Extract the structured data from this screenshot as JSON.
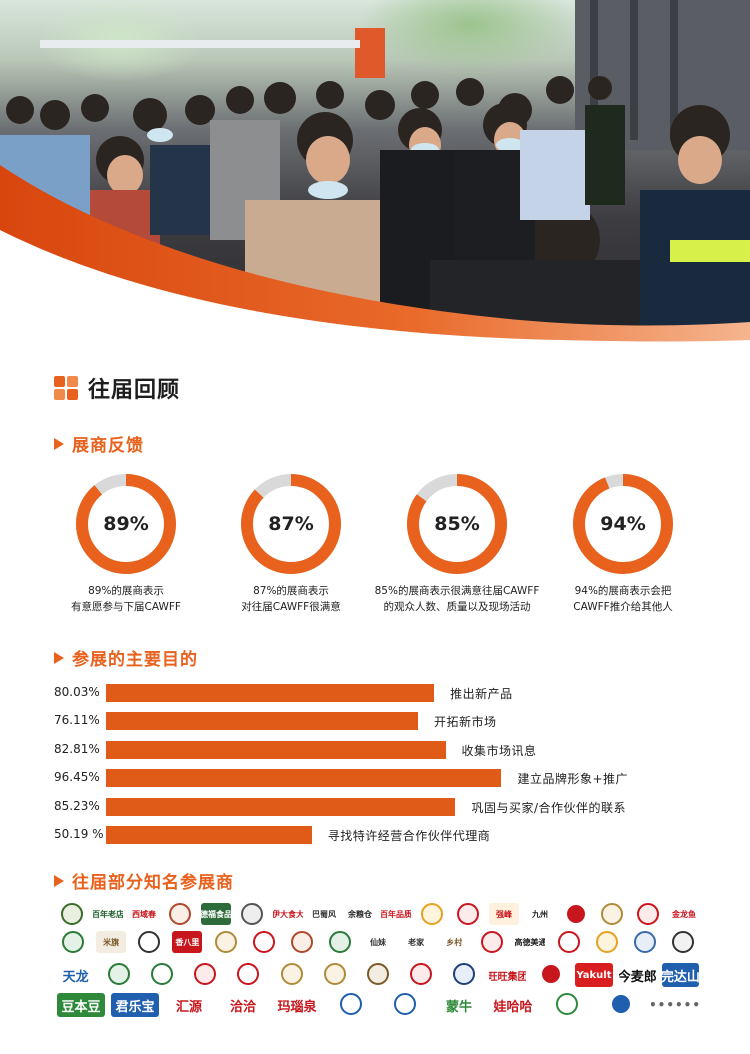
{
  "section_title": "往届回顾",
  "feedback": {
    "title": "展商反馈",
    "items": [
      {
        "value": 89,
        "label": "89%",
        "caption_line1": "89%的展商表示",
        "caption_line2": "有意愿参与下届CAWFF"
      },
      {
        "value": 87,
        "label": "87%",
        "caption_line1": "87%的展商表示",
        "caption_line2": "对往届CAWFF很满意"
      },
      {
        "value": 85,
        "label": "85%",
        "caption_line1": "85%的展商表示很满意往届CAWFF",
        "caption_line2": "的观众人数、质量以及现场活动"
      },
      {
        "value": 94,
        "label": "94%",
        "caption_line1": "94%的展商表示会把",
        "caption_line2": "CAWFF推介给其他人"
      }
    ],
    "colors": {
      "accent": "#e8621e",
      "track": "#d9d9d9"
    }
  },
  "purposes": {
    "title": "参展的主要目的",
    "chart_data": {
      "type": "bar",
      "categories": [
        "推出新产品",
        "开拓新市场",
        "收集市场讯息",
        "建立品牌形象+推广",
        "巩固与买家/合作伙伴的联系",
        "寻找特许经营合作伙伴代理商"
      ],
      "values": [
        80.03,
        76.11,
        82.81,
        96.45,
        85.23,
        50.19
      ],
      "value_labels": [
        "80.03%",
        "76.11%",
        "82.81%",
        "96.45%",
        "85.23%",
        "50.19 %"
      ],
      "bar_color": "#e05b17"
    }
  },
  "exhibitors": {
    "title": "往届部分知名参展商",
    "logos": [
      {
        "text": "",
        "color": "#3a6b2a",
        "bg": "#e9f0df"
      },
      {
        "text": "百年老店",
        "color": "#1a5e2a",
        "bg": "#ffffff"
      },
      {
        "text": "西域春",
        "color": "#c8161d",
        "bg": "#ffffff"
      },
      {
        "text": "",
        "color": "#b0472a",
        "bg": "#fbeee6"
      },
      {
        "text": "德福食品",
        "color": "#ffffff",
        "bg": "#2e6b3a"
      },
      {
        "text": "",
        "color": "#555555",
        "bg": "#eeeeee"
      },
      {
        "text": "伊大食大",
        "color": "#c8161d",
        "bg": "#ffffff"
      },
      {
        "text": "巴蜀风",
        "color": "#333333",
        "bg": "#ffffff"
      },
      {
        "text": "余粮仓",
        "color": "#222222",
        "bg": "#ffffff"
      },
      {
        "text": "百年品质",
        "color": "#c8161d",
        "bg": "#ffffff"
      },
      {
        "text": "",
        "color": "#e8a020",
        "bg": "#fff5dd"
      },
      {
        "text": "",
        "color": "#c8161d",
        "bg": "#fdeaea"
      },
      {
        "text": "强峰",
        "color": "#c8161d",
        "bg": "#fff1dd"
      },
      {
        "text": "九州",
        "color": "#222222",
        "bg": "#ffffff"
      },
      {
        "text": "",
        "color": "#ffffff",
        "bg": "#c8161d"
      },
      {
        "text": "",
        "color": "#b08a3a",
        "bg": "#faf3e3"
      },
      {
        "text": "",
        "color": "#c8161d",
        "bg": "#fdeaea"
      },
      {
        "text": "金龙鱼",
        "color": "#c8161d",
        "bg": "#ffffff"
      },
      {
        "text": "",
        "color": "#2a7a3a",
        "bg": "#e4f1e6"
      },
      {
        "text": "米旗",
        "color": "#7a5a2a",
        "bg": "#f3ece0"
      },
      {
        "text": "",
        "color": "#333333",
        "bg": "#ffffff"
      },
      {
        "text": "香八里",
        "color": "#ffffff",
        "bg": "#c8161d"
      },
      {
        "text": "",
        "color": "#b08a3a",
        "bg": "#faf3e3"
      },
      {
        "text": "",
        "color": "#c8161d",
        "bg": "#ffffff"
      },
      {
        "text": "",
        "color": "#b0472a",
        "bg": "#fbeee6"
      },
      {
        "text": "",
        "color": "#2a7a3a",
        "bg": "#e4f1e6"
      },
      {
        "text": "仙妹",
        "color": "#333333",
        "bg": "#ffffff"
      },
      {
        "text": "老家",
        "color": "#333333",
        "bg": "#ffffff"
      },
      {
        "text": "乡村",
        "color": "#7a5a2a",
        "bg": "#ffffff"
      },
      {
        "text": "",
        "color": "#c8161d",
        "bg": "#fdeaea"
      },
      {
        "text": "高德美通",
        "color": "#222222",
        "bg": "#ffffff"
      },
      {
        "text": "",
        "color": "#c8161d",
        "bg": "#ffffff"
      },
      {
        "text": "",
        "color": "#e8a020",
        "bg": "#fff5dd"
      },
      {
        "text": "",
        "color": "#3a6aa8",
        "bg": "#e6eef8"
      },
      {
        "text": "",
        "color": "#333333",
        "bg": "#f2f2f2"
      },
      {
        "text": "天龙",
        "color": "#1f5fae",
        "bg": "#ffffff"
      },
      {
        "text": "",
        "color": "#2a7a3a",
        "bg": "#e4f1e6"
      },
      {
        "text": "",
        "color": "#2a7a3a",
        "bg": "#ffffff"
      },
      {
        "text": "",
        "color": "#c8161d",
        "bg": "#fdeaea"
      },
      {
        "text": "",
        "color": "#c8161d",
        "bg": "#ffffff"
      },
      {
        "text": "",
        "color": "#b08a3a",
        "bg": "#faf3e3"
      },
      {
        "text": "",
        "color": "#b08a3a",
        "bg": "#faf3e3"
      },
      {
        "text": "",
        "color": "#7a5a2a",
        "bg": "#f3ece0"
      },
      {
        "text": "",
        "color": "#c8161d",
        "bg": "#fdeaea"
      },
      {
        "text": "",
        "color": "#1f3f7a",
        "bg": "#e6eef8"
      },
      {
        "text": "旺旺集团",
        "color": "#c8161d",
        "bg": "#ffffff"
      },
      {
        "text": "",
        "color": "#ffffff",
        "bg": "#c8161d"
      },
      {
        "text": "Yakult",
        "color": "#ffffff",
        "bg": "#d81e1e"
      },
      {
        "text": "今麦郎",
        "color": "#111111",
        "bg": "#ffffff"
      },
      {
        "text": "完达山",
        "color": "#ffffff",
        "bg": "#1f5fae"
      },
      {
        "text": "豆本豆",
        "color": "#ffffff",
        "bg": "#2e8a3a"
      },
      {
        "text": "君乐宝",
        "color": "#ffffff",
        "bg": "#1f5fae"
      },
      {
        "text": "汇源",
        "color": "#c8161d",
        "bg": "#ffffff"
      },
      {
        "text": "洽洽",
        "color": "#c8161d",
        "bg": "#ffffff"
      },
      {
        "text": "玛瑙泉",
        "color": "#c8161d",
        "bg": "#ffffff"
      },
      {
        "text": "",
        "color": "#1f5fae",
        "bg": "#ffffff"
      },
      {
        "text": "",
        "color": "#1f5fae",
        "bg": "#ffffff"
      },
      {
        "text": "蒙牛",
        "color": "#2e8a3a",
        "bg": "#ffffff"
      },
      {
        "text": "娃哈哈",
        "color": "#c8161d",
        "bg": "#ffffff"
      },
      {
        "text": "",
        "color": "#2e8a3a",
        "bg": "#ffffff"
      },
      {
        "text": "",
        "color": "#ffffff",
        "bg": "#1f5fae"
      },
      {
        "text": "••••••",
        "color": "#666666",
        "bg": "#ffffff"
      }
    ]
  }
}
